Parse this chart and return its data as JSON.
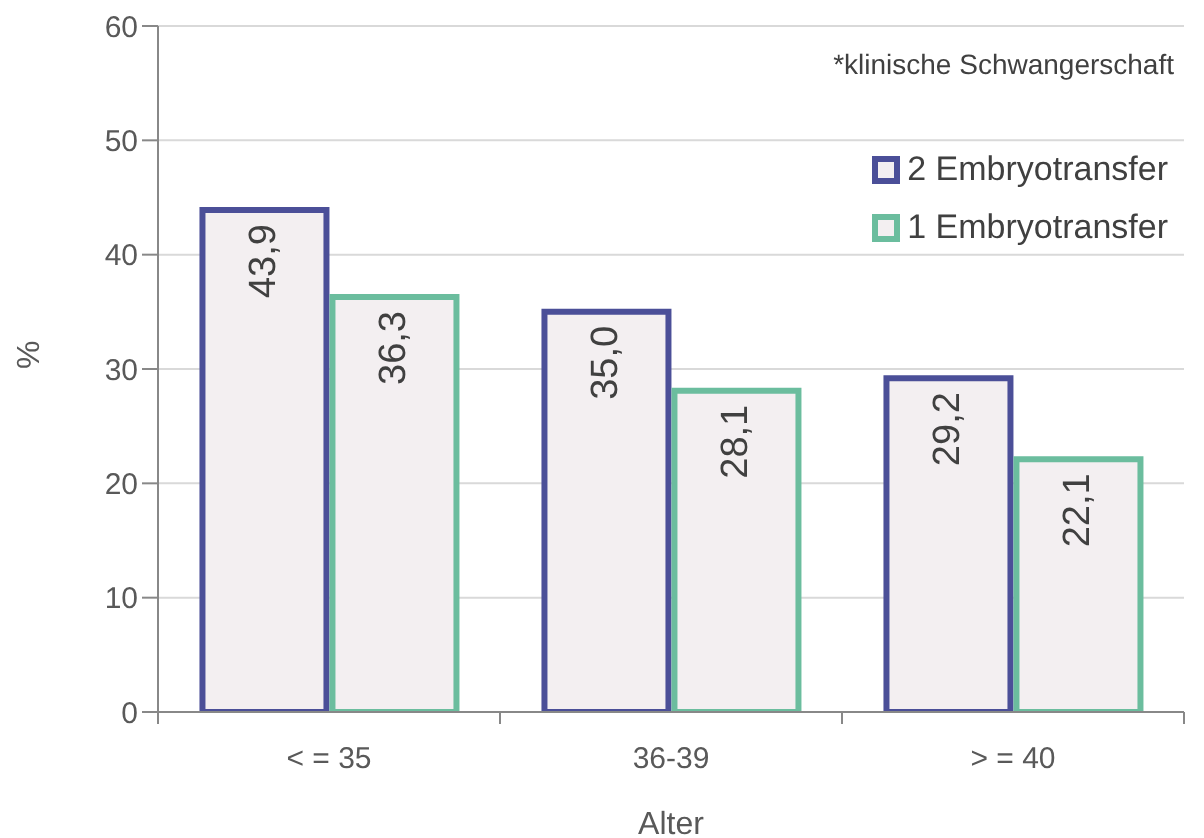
{
  "chart_data": {
    "type": "bar",
    "categories": [
      "< = 35",
      "36-39",
      "> = 40"
    ],
    "series": [
      {
        "name": "2 Embryotransfer",
        "color": "#4b4f98",
        "values": [
          43.9,
          35.0,
          29.2
        ],
        "value_labels": [
          "43,9",
          "35,0",
          "29,2"
        ]
      },
      {
        "name": "1 Embryotransfer",
        "color": "#6bbd9e",
        "values": [
          36.3,
          28.1,
          22.1
        ],
        "value_labels": [
          "36,3",
          "28,1",
          "22,1"
        ]
      }
    ],
    "xlabel": "Alter",
    "ylabel": "%",
    "ylim": [
      0,
      60
    ],
    "yticks": [
      0,
      10,
      20,
      30,
      40,
      50,
      60
    ],
    "grid": "y",
    "legend": "top right",
    "annotations": [
      "*klinische Schwangerschaft"
    ]
  }
}
